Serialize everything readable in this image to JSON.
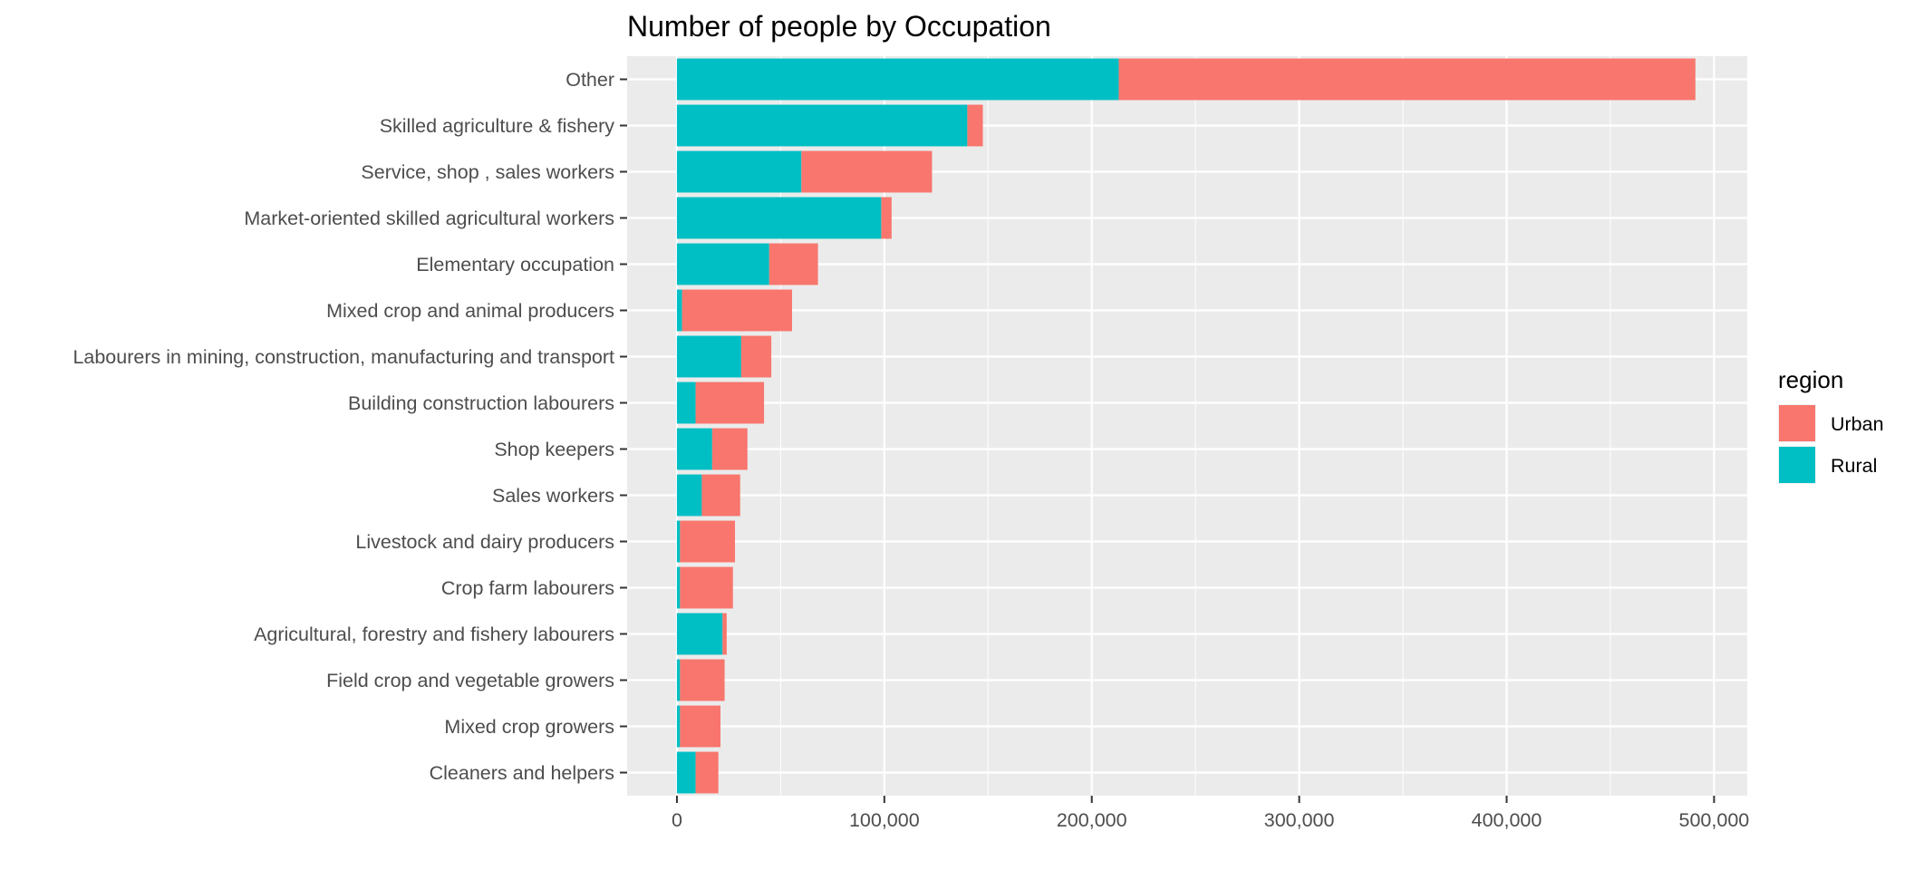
{
  "chart_data": {
    "type": "bar",
    "orientation": "horizontal",
    "stacked": true,
    "title": "Number of people by Occupation",
    "xlabel": "",
    "ylabel": "",
    "xlim": [
      -24000,
      516000
    ],
    "x_ticks": [
      0,
      100000,
      200000,
      300000,
      400000,
      500000
    ],
    "x_tick_labels": [
      "0",
      "100,000",
      "200,000",
      "300,000",
      "400,000",
      "500,000"
    ],
    "grid": true,
    "legend": {
      "title": "region",
      "position": "right"
    },
    "categories": [
      "Other",
      "Skilled agriculture & fishery",
      "Service, shop , sales workers",
      "Market-oriented skilled agricultural workers",
      "Elementary occupation",
      "Mixed crop and animal producers",
      "Labourers in mining, construction, manufacturing and transport",
      "Building construction labourers",
      "Shop keepers",
      "Sales workers",
      "Livestock and dairy producers",
      "Crop farm labourers",
      "Agricultural, forestry and fishery labourers",
      "Field crop and vegetable growers",
      "Mixed crop growers",
      "Cleaners and helpers"
    ],
    "series": [
      {
        "name": "Rural",
        "color": "#00BFC4",
        "values": [
          213000,
          140000,
          60000,
          98500,
          44500,
          2500,
          31000,
          9000,
          17000,
          12000,
          1500,
          1500,
          22000,
          1500,
          1500,
          9000
        ]
      },
      {
        "name": "Urban",
        "color": "#F8766D",
        "values": [
          278000,
          7500,
          63000,
          5000,
          23500,
          53000,
          14500,
          33000,
          17000,
          18500,
          26500,
          25500,
          2000,
          21500,
          19500,
          11000
        ]
      }
    ],
    "legend_order": [
      "Urban",
      "Rural"
    ],
    "colors": {
      "panel_background": "#EBEBEB",
      "grid_major": "#FFFFFF",
      "tick_text": "#4D4D4D",
      "tick_mark": "#333333"
    }
  }
}
